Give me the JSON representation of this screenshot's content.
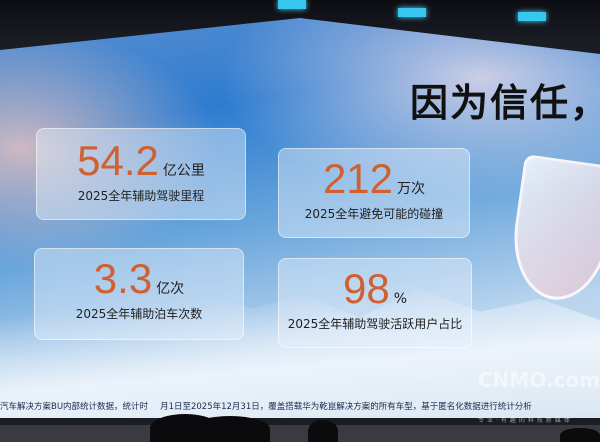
{
  "slide": {
    "title": "因为信任，",
    "stats": [
      {
        "value": "54.2",
        "unit": "亿公里",
        "label": "2025全年辅助驾驶里程"
      },
      {
        "value": "212",
        "unit": "万次",
        "label": "2025全年避免可能的碰撞"
      },
      {
        "value": "3.3",
        "unit": "亿次",
        "label": "2025全年辅助泊车次数"
      },
      {
        "value": "98",
        "unit": "%",
        "label": "2025全年辅助驾驶活跃用户占比"
      }
    ],
    "footnote_left": "汽车解决方案BU内部统计数据，统计时",
    "footnote_right": "月1日至2025年12月31日，覆盖搭载华为乾崑解决方案的所有车型，基于匿名化数据进行统计分析"
  },
  "watermark": {
    "logo": "CNMO.com",
    "tagline": "专业·有趣的科技新媒体"
  },
  "colors": {
    "accent": "#d06030"
  }
}
